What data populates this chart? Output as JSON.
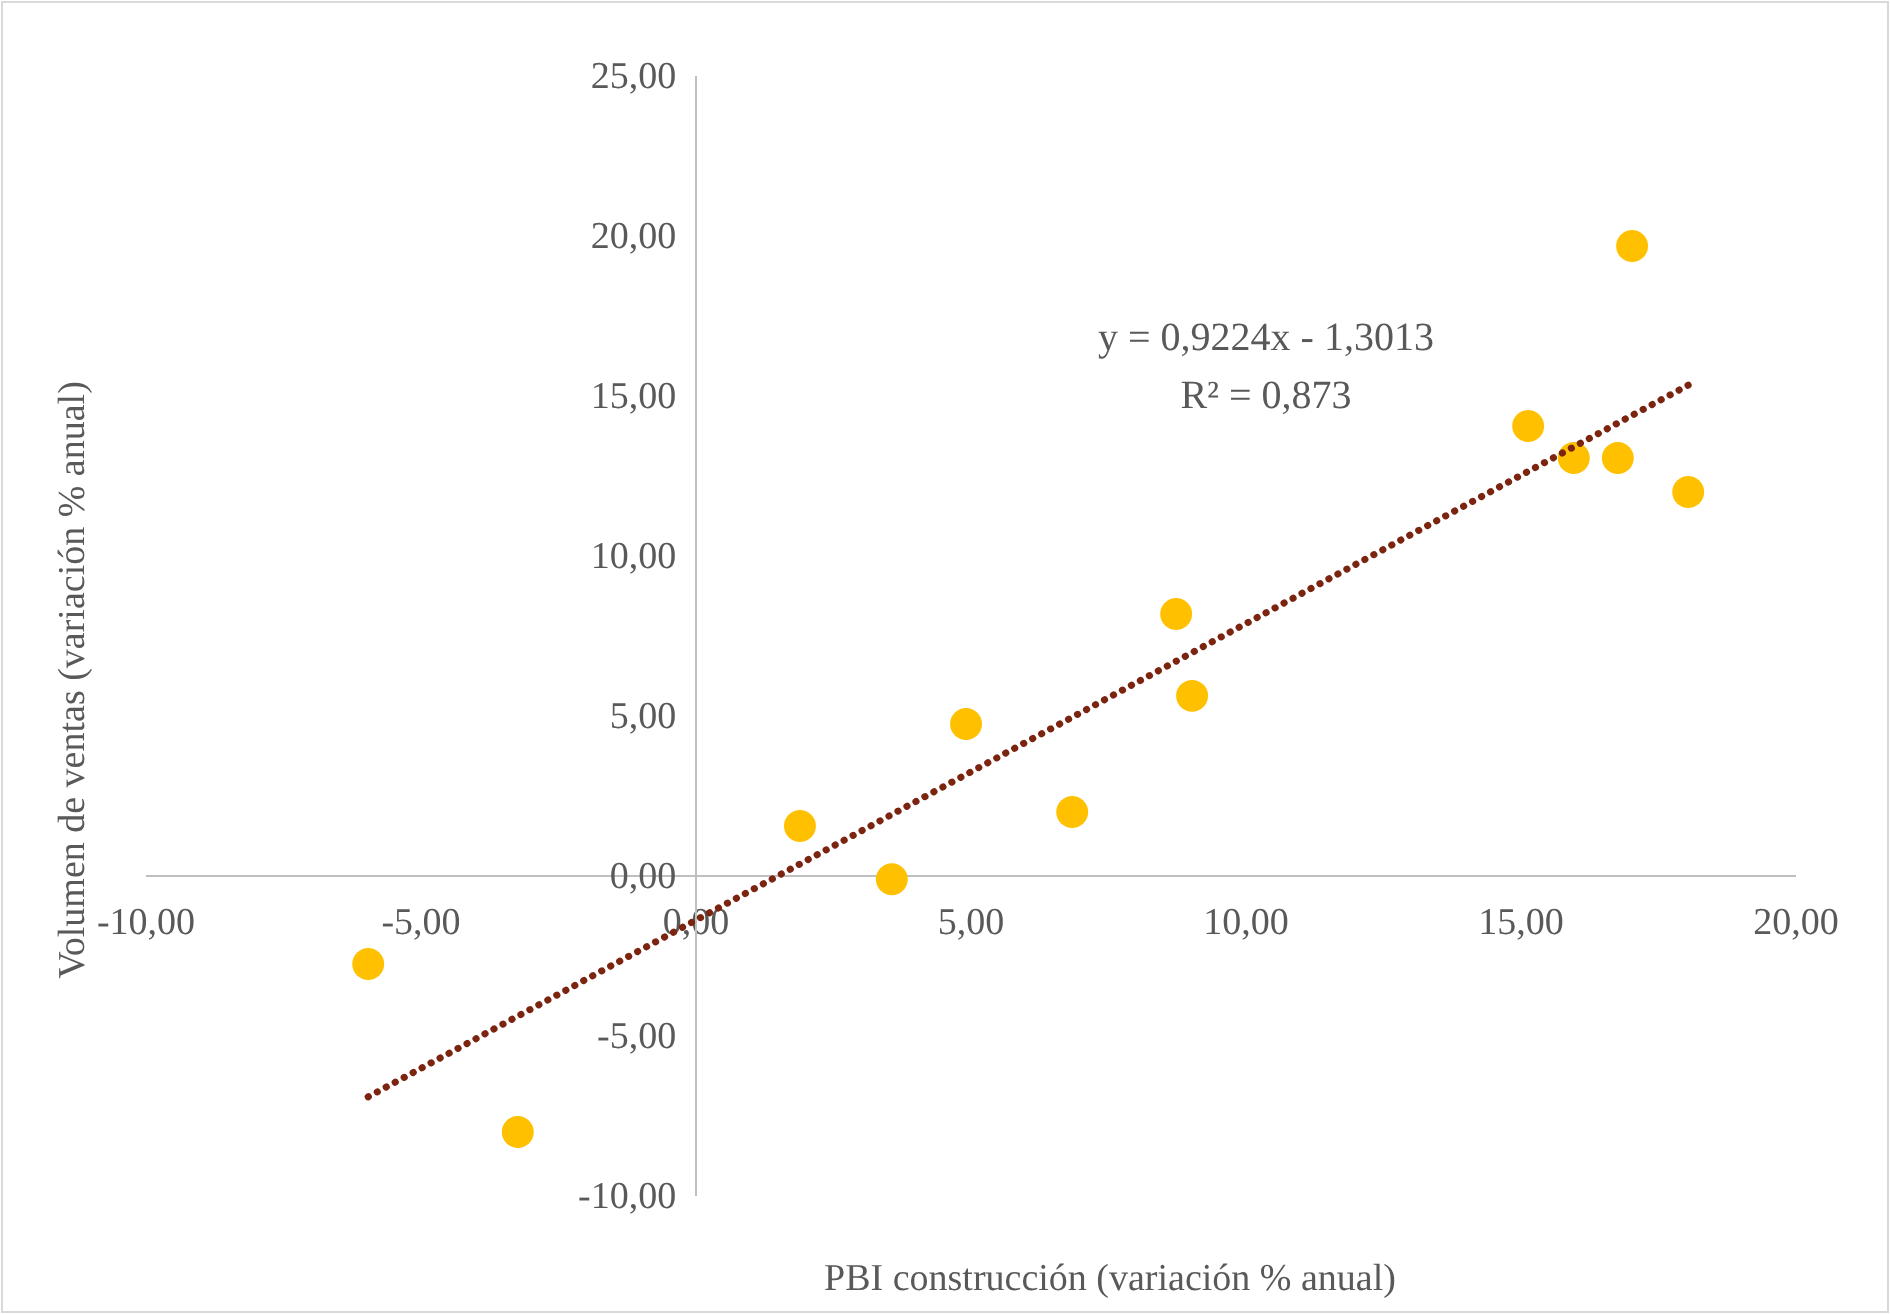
{
  "chart_data": {
    "type": "scatter",
    "xlabel": "PBI construcción (variación % anual)",
    "ylabel": "Volumen de ventas (variación  % anual)",
    "annotations": [
      "y = 0,9224x  - 1,3013",
      "R² = 0,873"
    ],
    "xlim": [
      -10,
      20
    ],
    "ylim": [
      -10,
      25
    ],
    "xticks": [
      {
        "value": -10,
        "label": "-10,00"
      },
      {
        "value": -5,
        "label": "-5,00"
      },
      {
        "value": 0,
        "label": "0,00"
      },
      {
        "value": 5,
        "label": "5,00"
      },
      {
        "value": 10,
        "label": "10,00"
      },
      {
        "value": 15,
        "label": "15,00"
      },
      {
        "value": 20,
        "label": "20,00"
      }
    ],
    "yticks": [
      {
        "value": -10,
        "label": "-10,00"
      },
      {
        "value": -5,
        "label": "-5,00"
      },
      {
        "value": 0,
        "label": "0,00"
      },
      {
        "value": 5,
        "label": "5,00"
      },
      {
        "value": 10,
        "label": "10,00"
      },
      {
        "value": 15,
        "label": "15,00"
      },
      {
        "value": 20,
        "label": "20,00"
      },
      {
        "value": 25,
        "label": "25,00"
      }
    ],
    "grid": false,
    "marker": "circle",
    "series": [
      {
        "color": "#ffc000",
        "x": [
          -5.96,
          -3.24,
          1.89,
          3.56,
          4.91,
          6.84,
          8.73,
          9.02,
          15.13,
          15.96,
          16.76,
          17.02,
          18.04
        ],
        "values": [
          -2.75,
          -8.0,
          1.56,
          -0.1,
          4.75,
          2.0,
          8.19,
          5.63,
          14.06,
          13.06,
          13.06,
          19.69,
          12.0
        ]
      },
      {
        "type": "line",
        "color": "#7b2410",
        "line_style": "dotted",
        "marker": "none",
        "x": [
          -5.96,
          18.04
        ],
        "values": [
          -6.9,
          15.34
        ]
      }
    ]
  }
}
